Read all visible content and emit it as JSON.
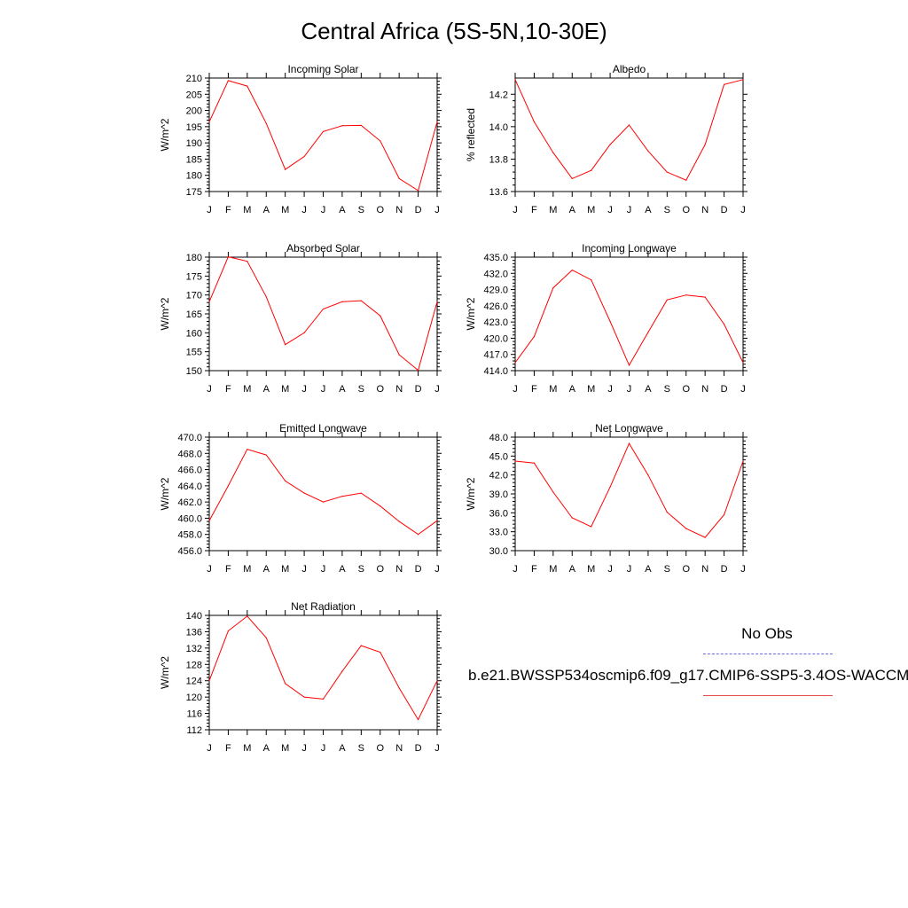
{
  "title": "Central Africa (5S-5N,10-30E)",
  "legend": {
    "obs_label": "No Obs",
    "obs_color": "#6a6ae0",
    "model_label": "b.e21.BWSSP534oscmip6.f09_g17.CMIP6-SSP5-3.4OS-WACCM",
    "model_color": "#ff0000"
  },
  "chart_data": [
    {
      "type": "line",
      "title": "Incoming Solar",
      "ylabel": "W/m^2",
      "ylim": [
        175,
        210
      ],
      "yticks": [
        "175",
        "180",
        "185",
        "190",
        "195",
        "200",
        "205",
        "210"
      ],
      "categories": [
        "J",
        "F",
        "M",
        "A",
        "M",
        "J",
        "J",
        "A",
        "S",
        "O",
        "N",
        "D",
        "J"
      ],
      "series": [
        {
          "values": [
            196.5,
            209.2,
            207.5,
            196.0,
            181.8,
            185.8,
            193.5,
            195.3,
            195.4,
            190.6,
            179.0,
            175.3,
            196.5
          ]
        }
      ],
      "grid": false
    },
    {
      "type": "line",
      "title": "Albedo",
      "ylabel": "% reflected",
      "ylim": [
        13.6,
        14.3
      ],
      "yticks": [
        "13.6",
        "13.8",
        "14.0",
        "14.2"
      ],
      "categories": [
        "J",
        "F",
        "M",
        "A",
        "M",
        "J",
        "J",
        "A",
        "S",
        "O",
        "N",
        "D",
        "J"
      ],
      "series": [
        {
          "values": [
            14.29,
            14.03,
            13.84,
            13.68,
            13.73,
            13.89,
            14.01,
            13.85,
            13.72,
            13.67,
            13.89,
            14.26,
            14.29
          ]
        }
      ],
      "grid": false
    },
    {
      "type": "line",
      "title": "Absorbed Solar",
      "ylabel": "W/m^2",
      "ylim": [
        150,
        180
      ],
      "yticks": [
        "150",
        "155",
        "160",
        "165",
        "170",
        "175",
        "180"
      ],
      "categories": [
        "J",
        "F",
        "M",
        "A",
        "M",
        "J",
        "J",
        "A",
        "S",
        "O",
        "N",
        "D",
        "J"
      ],
      "series": [
        {
          "values": [
            168.2,
            180.1,
            178.9,
            169.5,
            156.9,
            160.0,
            166.3,
            168.2,
            168.5,
            164.5,
            154.2,
            150.1,
            168.2
          ]
        }
      ],
      "grid": false
    },
    {
      "type": "line",
      "title": "Incoming Longwave",
      "ylabel": "W/m^2",
      "ylim": [
        414.0,
        435.0
      ],
      "yticks": [
        "414.0",
        "417.0",
        "420.0",
        "423.0",
        "426.0",
        "429.0",
        "432.0",
        "435.0"
      ],
      "categories": [
        "J",
        "F",
        "M",
        "A",
        "M",
        "J",
        "J",
        "A",
        "S",
        "O",
        "N",
        "D",
        "J"
      ],
      "series": [
        {
          "values": [
            415.5,
            420.3,
            429.3,
            432.6,
            430.8,
            423.1,
            415.0,
            421.1,
            427.1,
            428.0,
            427.6,
            422.6,
            415.5
          ]
        }
      ],
      "grid": false
    },
    {
      "type": "line",
      "title": "Emitted Longwave",
      "ylabel": "W/m^2",
      "ylim": [
        456.0,
        470.0
      ],
      "yticks": [
        "456.0",
        "458.0",
        "460.0",
        "462.0",
        "464.0",
        "466.0",
        "468.0",
        "470.0"
      ],
      "categories": [
        "J",
        "F",
        "M",
        "A",
        "M",
        "J",
        "J",
        "A",
        "S",
        "O",
        "N",
        "D",
        "J"
      ],
      "series": [
        {
          "values": [
            459.7,
            464.0,
            468.5,
            467.8,
            464.6,
            463.1,
            462.0,
            462.7,
            463.1,
            461.5,
            459.6,
            458.0,
            459.7
          ]
        }
      ],
      "grid": false
    },
    {
      "type": "line",
      "title": "Net Longwave",
      "ylabel": "W/m^2",
      "ylim": [
        30.0,
        48.0
      ],
      "yticks": [
        "30.0",
        "33.0",
        "36.0",
        "39.0",
        "42.0",
        "45.0",
        "48.0"
      ],
      "categories": [
        "J",
        "F",
        "M",
        "A",
        "M",
        "J",
        "J",
        "A",
        "S",
        "O",
        "N",
        "D",
        "J"
      ],
      "series": [
        {
          "values": [
            44.2,
            43.9,
            39.3,
            35.2,
            33.8,
            40.1,
            47.0,
            42.0,
            36.1,
            33.5,
            32.1,
            35.7,
            44.2
          ]
        }
      ],
      "grid": false
    },
    {
      "type": "line",
      "title": "Net Radiation",
      "ylabel": "W/m^2",
      "ylim": [
        112,
        140
      ],
      "yticks": [
        "112",
        "116",
        "120",
        "124",
        "128",
        "132",
        "136",
        "140"
      ],
      "categories": [
        "J",
        "F",
        "M",
        "A",
        "M",
        "J",
        "J",
        "A",
        "S",
        "O",
        "N",
        "D",
        "J"
      ],
      "series": [
        {
          "values": [
            124.0,
            136.2,
            139.8,
            134.5,
            123.3,
            120.0,
            119.5,
            126.3,
            132.6,
            131.0,
            122.2,
            114.5,
            124.0
          ]
        }
      ],
      "grid": false
    }
  ]
}
